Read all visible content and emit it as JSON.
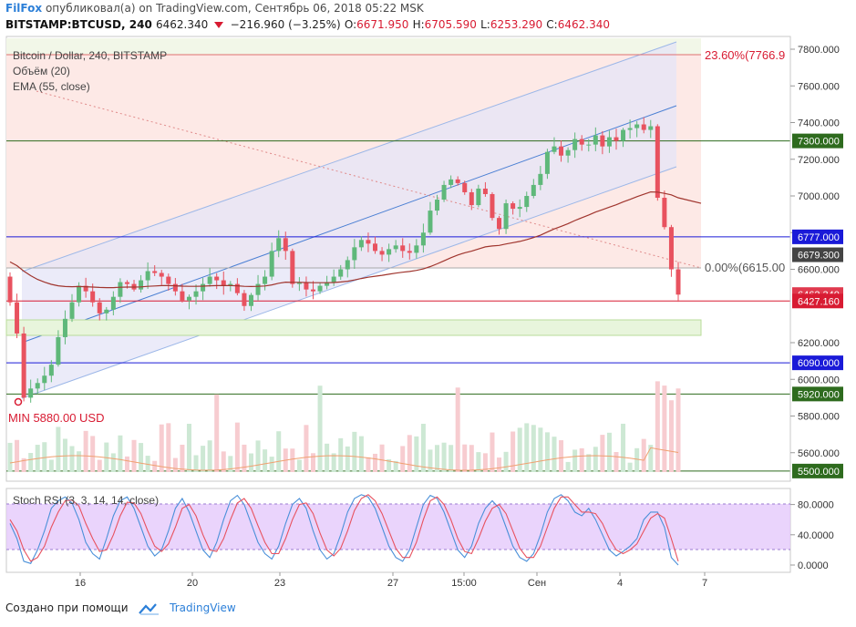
{
  "header": {
    "author": "FilFox",
    "published_text": "опубликовал(а) on TradingView.com, Сентябрь 06, 2018 05:22 MSK",
    "symbol": "BITSTAMP:BTCUSD, 240",
    "last": "6462.340",
    "change": "−216.960 (−3.25%)",
    "o_label": "O:",
    "o": "6671.950",
    "h_label": "H:",
    "h": "6705.590",
    "l_label": "L:",
    "l": "6253.290",
    "c_label": "C:",
    "c": "6462.340"
  },
  "legend": {
    "title": "Bitcoin / Dollar, 240, BITSTAMP",
    "volume": "Объём (20)",
    "ema": "EMA (55, close)"
  },
  "fib": {
    "top_label": "23.60%(7766.9",
    "bottom_label": "0.00%(6615.00"
  },
  "min_label": "MIN 5880.00 USD",
  "stoch_label": "Stoch RSI (3, 3, 14, 14, close)",
  "price_axis_ticks": [
    "7800.000",
    "7600.000",
    "7400.000",
    "7200.000",
    "7000.000",
    "6800.000",
    "6600.000",
    "6200.000",
    "6000.000",
    "5800.000",
    "5600.000"
  ],
  "price_badges": [
    {
      "price": 7300,
      "text": "7300.000",
      "color": "#2e6b1e"
    },
    {
      "price": 6777,
      "text": "6777.000",
      "color": "#1a1ad8"
    },
    {
      "price": 6679.3,
      "text": "6679.300",
      "color": "#444444"
    },
    {
      "price": 6462.34,
      "text": "6462.340",
      "color": "#e03a4e"
    },
    {
      "price": 6427.16,
      "text": "6427.160",
      "color": "#d81b32"
    },
    {
      "price": 6090,
      "text": "6090.000",
      "color": "#1a1ad8"
    },
    {
      "price": 5920,
      "text": "5920.000",
      "color": "#2e6b1e"
    },
    {
      "price": 5500,
      "text": "5500.000",
      "color": "#2e6b1e"
    }
  ],
  "stoch_axis_ticks": [
    "80.0000",
    "40.0000",
    "0.0000"
  ],
  "x_axis_labels": [
    "16",
    "20",
    "23",
    "27",
    "15:00",
    "Сен",
    "4",
    "7"
  ],
  "footer": {
    "created_with": "Создано при помощи",
    "brand": "TradingView"
  },
  "colors": {
    "up": "#5fb87a",
    "down": "#e8525f",
    "ema": "#a0352e",
    "stoch_k": "#4a90d9",
    "stoch_d": "#e8525f",
    "stoch_band": "#e3c6fb"
  },
  "chart_data": {
    "type": "candlestick",
    "title": "Bitcoin / Dollar, 240, BITSTAMP",
    "price_range": [
      5480,
      7850
    ],
    "closes": [
      6420,
      6250,
      5900,
      5950,
      5980,
      6020,
      6080,
      6230,
      6330,
      6420,
      6510,
      6480,
      6420,
      6360,
      6380,
      6450,
      6530,
      6520,
      6490,
      6540,
      6590,
      6580,
      6560,
      6520,
      6480,
      6430,
      6450,
      6480,
      6520,
      6560,
      6540,
      6510,
      6520,
      6470,
      6400,
      6460,
      6520,
      6560,
      6700,
      6770,
      6700,
      6520,
      6530,
      6490,
      6480,
      6510,
      6530,
      6560,
      6600,
      6650,
      6720,
      6760,
      6740,
      6700,
      6680,
      6710,
      6730,
      6700,
      6690,
      6730,
      6800,
      6920,
      6980,
      7060,
      7090,
      7070,
      7020,
      6950,
      7040,
      7010,
      6880,
      6820,
      6960,
      6930,
      6940,
      7000,
      7060,
      7120,
      7240,
      7270,
      7220,
      7250,
      7310,
      7280,
      7280,
      7330,
      7270,
      7320,
      7300,
      7360,
      7370,
      7390,
      7360,
      7380,
      6990,
      6830,
      6600,
      6462
    ],
    "ema55": [
      6640,
      6620,
      6590,
      6565,
      6545,
      6530,
      6518,
      6510,
      6506,
      6505,
      6506,
      6505,
      6503,
      6501,
      6500,
      6500,
      6502,
      6503,
      6503,
      6504,
      6507,
      6509,
      6511,
      6511,
      6510,
      6508,
      6507,
      6507,
      6508,
      6510,
      6511,
      6511,
      6511,
      6510,
      6507,
      6506,
      6507,
      6509,
      6515,
      6524,
      6530,
      6529,
      6529,
      6528,
      6527,
      6527,
      6527,
      6528,
      6531,
      6535,
      6542,
      6550,
      6557,
      6562,
      6567,
      6573,
      6579,
      6584,
      6588,
      6594,
      6602,
      6615,
      6630,
      6646,
      6663,
      6678,
      6690,
      6699,
      6711,
      6722,
      6727,
      6730,
      6738,
      6745,
      6752,
      6762,
      6773,
      6786,
      6803,
      6820,
      6834,
      6849,
      6866,
      6881,
      6896,
      6912,
      6925,
      6939,
      6952,
      6967,
      6981,
      6996,
      7009,
      7022,
      7021,
      7014,
      7006,
      6990
    ],
    "stoch_k": [
      55,
      35,
      5,
      2,
      20,
      45,
      75,
      85,
      90,
      82,
      60,
      30,
      15,
      8,
      35,
      65,
      85,
      90,
      75,
      50,
      25,
      12,
      20,
      45,
      75,
      88,
      70,
      45,
      20,
      10,
      30,
      60,
      85,
      92,
      80,
      55,
      30,
      15,
      8,
      25,
      55,
      80,
      88,
      75,
      45,
      20,
      8,
      15,
      40,
      70,
      88,
      93,
      90,
      75,
      50,
      25,
      10,
      5,
      20,
      50,
      80,
      92,
      88,
      70,
      45,
      20,
      10,
      25,
      55,
      75,
      85,
      75,
      50,
      25,
      10,
      5,
      15,
      40,
      70,
      88,
      93,
      85,
      70,
      65,
      75,
      60,
      40,
      20,
      12,
      18,
      25,
      35,
      60,
      70,
      70,
      50,
      10,
      0
    ],
    "stoch_d": [
      60,
      45,
      20,
      5,
      10,
      25,
      50,
      70,
      85,
      86,
      78,
      55,
      35,
      18,
      20,
      40,
      65,
      83,
      82,
      68,
      45,
      25,
      18,
      28,
      50,
      75,
      80,
      65,
      40,
      20,
      18,
      35,
      60,
      82,
      88,
      75,
      52,
      30,
      15,
      15,
      35,
      60,
      80,
      82,
      68,
      42,
      20,
      12,
      22,
      45,
      72,
      88,
      93,
      85,
      68,
      45,
      22,
      10,
      10,
      30,
      60,
      85,
      90,
      80,
      60,
      35,
      18,
      15,
      35,
      58,
      75,
      80,
      68,
      45,
      22,
      10,
      10,
      25,
      50,
      75,
      90,
      90,
      80,
      70,
      70,
      68,
      55,
      35,
      20,
      15,
      20,
      28,
      45,
      62,
      68,
      62,
      35,
      5
    ],
    "x_axis_labels": [
      "16",
      "20",
      "23",
      "27",
      "15:00",
      "Сен",
      "4",
      "7"
    ],
    "horizontal_levels": [
      7300,
      6777,
      6090,
      5920,
      5500
    ]
  }
}
